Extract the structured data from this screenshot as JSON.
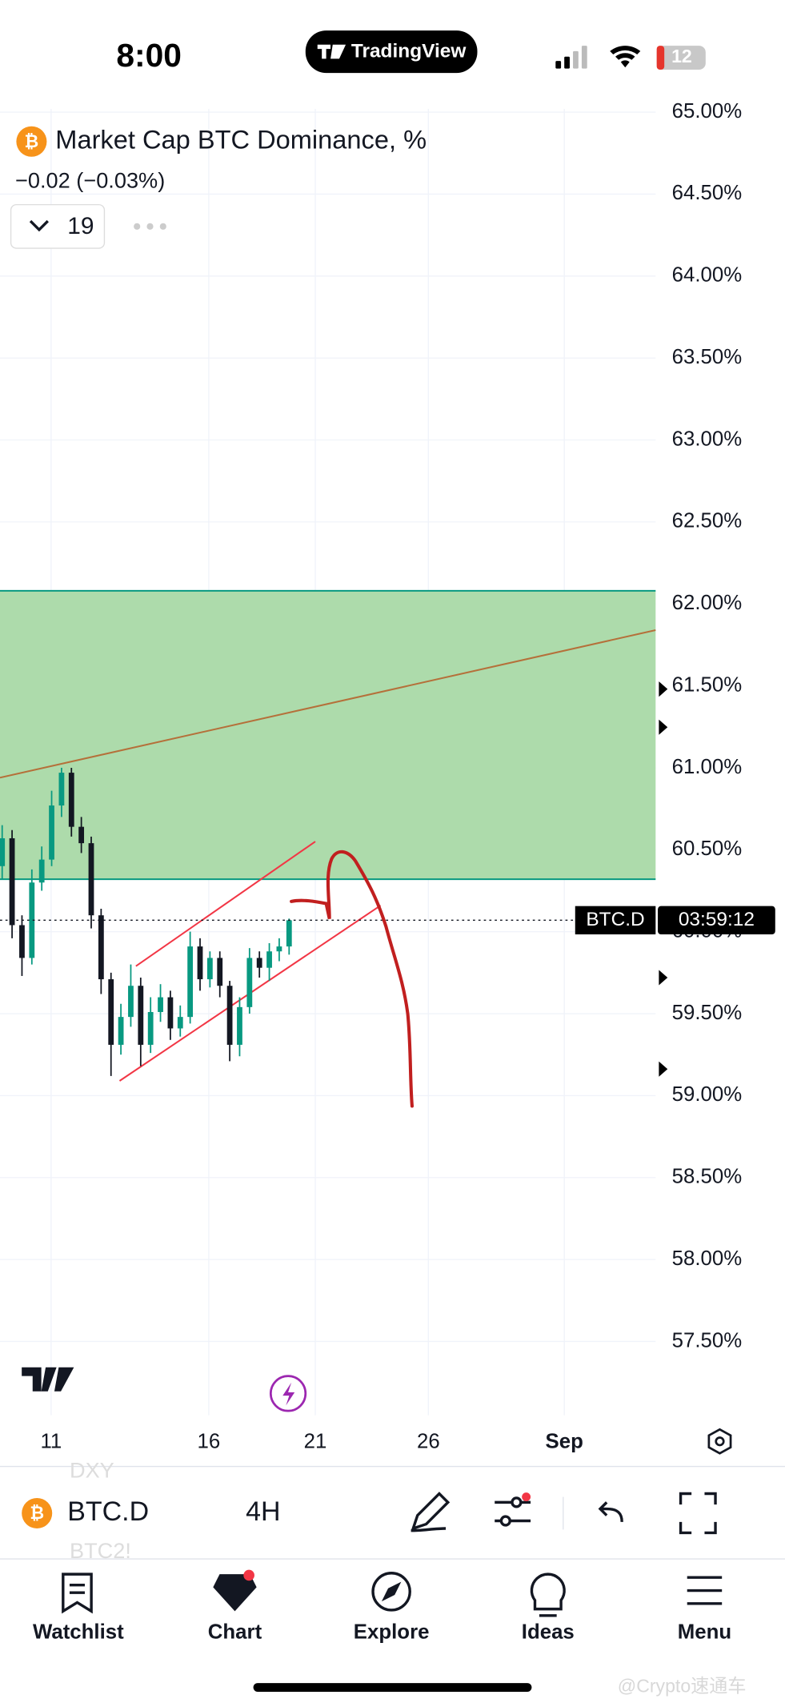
{
  "status_bar": {
    "time": "8:00",
    "app": "TradingView",
    "battery": "12"
  },
  "header": {
    "title": "Market Cap BTC Dominance, %",
    "change": "−0.02 (−0.03%)",
    "interval_count": "19"
  },
  "chart_data": {
    "type": "candlestick",
    "ylim": [
      57.05,
      65.02
    ],
    "yticks": [
      {
        "value": 57.5,
        "label": "57.50%"
      },
      {
        "value": 58,
        "label": "58.00%"
      },
      {
        "value": 58.5,
        "label": "58.50%"
      },
      {
        "value": 59,
        "label": "59.00%"
      },
      {
        "value": 59.5,
        "label": "59.50%"
      },
      {
        "value": 60,
        "label": "60.00%"
      },
      {
        "value": 60.5,
        "label": "60.50%"
      },
      {
        "value": 61,
        "label": "61.00%"
      },
      {
        "value": 61.5,
        "label": "61.50%"
      },
      {
        "value": 62,
        "label": "62.00%"
      },
      {
        "value": 62.5,
        "label": "62.50%"
      },
      {
        "value": 63,
        "label": "63.00%"
      },
      {
        "value": 63.5,
        "label": "63.50%"
      },
      {
        "value": 64,
        "label": "64.00%"
      },
      {
        "value": 64.5,
        "label": "64.50%"
      },
      {
        "value": 65,
        "label": "65.00%"
      }
    ],
    "xticks": [
      "11",
      "16",
      "21",
      "26",
      "Sep"
    ],
    "candles": [
      [
        60.4,
        60.65,
        60.32,
        60.57
      ],
      [
        60.57,
        60.62,
        59.96,
        60.04
      ],
      [
        60.04,
        60.1,
        59.73,
        59.84
      ],
      [
        59.84,
        60.38,
        59.8,
        60.3
      ],
      [
        60.3,
        60.52,
        60.25,
        60.44
      ],
      [
        60.44,
        60.86,
        60.4,
        60.77
      ],
      [
        60.77,
        61.0,
        60.7,
        60.97
      ],
      [
        60.97,
        61.0,
        60.58,
        60.64
      ],
      [
        60.64,
        60.7,
        60.48,
        60.54
      ],
      [
        60.54,
        60.58,
        60.02,
        60.1
      ],
      [
        60.1,
        60.14,
        59.62,
        59.71
      ],
      [
        59.71,
        59.75,
        59.12,
        59.31
      ],
      [
        59.31,
        59.56,
        59.25,
        59.48
      ],
      [
        59.48,
        59.8,
        59.42,
        59.67
      ],
      [
        59.67,
        59.72,
        59.18,
        59.31
      ],
      [
        59.31,
        59.6,
        59.26,
        59.51
      ],
      [
        59.51,
        59.68,
        59.45,
        59.6
      ],
      [
        59.6,
        59.64,
        59.34,
        59.41
      ],
      [
        59.41,
        59.55,
        59.36,
        59.48
      ],
      [
        59.48,
        60.0,
        59.44,
        59.91
      ],
      [
        59.91,
        59.96,
        59.64,
        59.71
      ],
      [
        59.71,
        59.88,
        59.66,
        59.84
      ],
      [
        59.84,
        59.88,
        59.6,
        59.67
      ],
      [
        59.67,
        59.7,
        59.21,
        59.31
      ],
      [
        59.31,
        59.6,
        59.24,
        59.54
      ],
      [
        59.54,
        59.9,
        59.5,
        59.84
      ],
      [
        59.84,
        59.88,
        59.72,
        59.78
      ],
      [
        59.78,
        59.93,
        59.7,
        59.88
      ],
      [
        59.88,
        59.96,
        59.82,
        59.91
      ],
      [
        59.91,
        60.08,
        59.86,
        60.07
      ]
    ],
    "up_color": "#089981",
    "down_color": "#131722",
    "zone": [
      60.32,
      62.08
    ],
    "zone_color": "#a9d9a6",
    "trendline": [
      60.94,
      61.84
    ],
    "channel_upper": [
      59.79,
      60.55
    ],
    "channel_lower": [
      59.09,
      60.16
    ],
    "symbol_label": "BTC.D",
    "countdown": "03:59:12"
  },
  "toolbar": {
    "prev_symbol": "DXY",
    "symbol": "BTC.D",
    "interval": "4H",
    "next_symbol": "BTC2!"
  },
  "nav": [
    "Watchlist",
    "Chart",
    "Explore",
    "Ideas",
    "Menu"
  ],
  "watermark": "@Crypto速通车"
}
